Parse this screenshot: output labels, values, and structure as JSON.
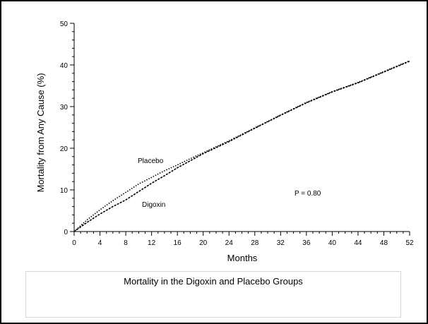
{
  "chart_data": {
    "type": "line",
    "title": "",
    "xlabel": "Months",
    "ylabel": "Mortality from Any Cause (%)",
    "xlim": [
      0,
      52
    ],
    "ylim": [
      0,
      50
    ],
    "x_ticks": [
      0,
      4,
      8,
      12,
      16,
      20,
      24,
      28,
      32,
      36,
      40,
      44,
      48,
      52
    ],
    "y_ticks": [
      0,
      10,
      20,
      30,
      40,
      50
    ],
    "grid": false,
    "series": [
      {
        "name": "Placebo",
        "style": "dotted",
        "x": [
          0,
          2,
          4,
          6,
          8,
          10,
          12,
          14,
          16,
          18,
          20,
          24,
          28,
          32,
          36,
          40,
          44,
          48,
          52
        ],
        "y": [
          0,
          2.8,
          5.2,
          7.4,
          9.4,
          11.4,
          13.0,
          14.6,
          16.0,
          17.5,
          18.9,
          21.8,
          24.9,
          28.0,
          31.0,
          33.6,
          35.8,
          38.4,
          41.0
        ]
      },
      {
        "name": "Digoxin",
        "style": "dashed",
        "x": [
          0,
          2,
          4,
          6,
          8,
          10,
          12,
          14,
          16,
          18,
          20,
          24,
          28,
          32,
          36,
          40,
          44,
          48,
          52
        ],
        "y": [
          0,
          2.2,
          4.2,
          6.0,
          7.6,
          9.6,
          11.6,
          13.4,
          15.3,
          17.0,
          18.7,
          21.6,
          24.8,
          27.9,
          30.9,
          33.5,
          35.7,
          38.3,
          40.9
        ]
      }
    ],
    "annotations": [
      {
        "text": "P = 0.80"
      }
    ]
  },
  "caption": "Mortality in the Digoxin and Placebo Groups"
}
